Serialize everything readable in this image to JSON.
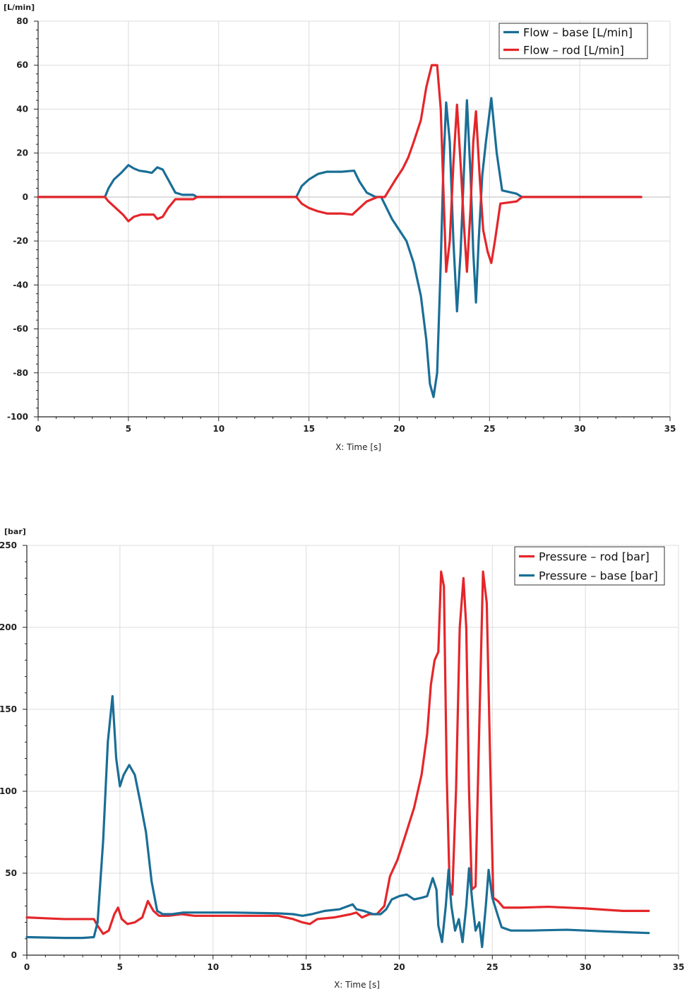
{
  "colors": {
    "blue": "#1a6e96",
    "red": "#e4262a"
  },
  "chart_data": [
    {
      "type": "line",
      "unit_label": "[L/min]",
      "xlabel": "X: Time [s]",
      "ylabel": "[L/min]",
      "xlim": [
        0,
        35
      ],
      "ylim": [
        -100,
        80
      ],
      "xticks": [
        0,
        5,
        10,
        15,
        20,
        25,
        30,
        35
      ],
      "yticks": [
        80,
        60,
        40,
        20,
        0,
        -20,
        -40,
        -60,
        -80,
        -100
      ],
      "legend_position": "top-right",
      "series": [
        {
          "name": "Flow – base [L/min]",
          "color": "#1a6e96",
          "points": [
            [
              0,
              0
            ],
            [
              3.7,
              0
            ],
            [
              3.9,
              4
            ],
            [
              4.2,
              8
            ],
            [
              4.6,
              11
            ],
            [
              5,
              14.5
            ],
            [
              5.3,
              13
            ],
            [
              5.6,
              12
            ],
            [
              6,
              11.5
            ],
            [
              6.3,
              11
            ],
            [
              6.6,
              13.5
            ],
            [
              6.9,
              12.5
            ],
            [
              7.2,
              8
            ],
            [
              7.6,
              2
            ],
            [
              8,
              1
            ],
            [
              8.6,
              1
            ],
            [
              8.8,
              0
            ],
            [
              14.3,
              0
            ],
            [
              14.6,
              5
            ],
            [
              15,
              8
            ],
            [
              15.5,
              10.5
            ],
            [
              16,
              11.5
            ],
            [
              16.8,
              11.5
            ],
            [
              17.5,
              12
            ],
            [
              17.8,
              7
            ],
            [
              18.2,
              2
            ],
            [
              18.7,
              0
            ],
            [
              19,
              0
            ],
            [
              19.3,
              -5
            ],
            [
              19.6,
              -10
            ],
            [
              20,
              -15
            ],
            [
              20.4,
              -20
            ],
            [
              20.8,
              -30
            ],
            [
              21.2,
              -45
            ],
            [
              21.5,
              -65
            ],
            [
              21.7,
              -85
            ],
            [
              21.9,
              -91
            ],
            [
              22.1,
              -80
            ],
            [
              22.3,
              -30
            ],
            [
              22.45,
              15
            ],
            [
              22.6,
              43
            ],
            [
              22.8,
              25
            ],
            [
              23,
              -20
            ],
            [
              23.2,
              -52
            ],
            [
              23.4,
              -25
            ],
            [
              23.6,
              15
            ],
            [
              23.75,
              44
            ],
            [
              23.95,
              10
            ],
            [
              24.1,
              -25
            ],
            [
              24.25,
              -48
            ],
            [
              24.4,
              -20
            ],
            [
              24.6,
              10
            ],
            [
              24.8,
              25
            ],
            [
              25.1,
              45
            ],
            [
              25.4,
              20
            ],
            [
              25.7,
              3
            ],
            [
              26.5,
              1.5
            ],
            [
              26.8,
              0
            ],
            [
              33.4,
              0
            ]
          ]
        },
        {
          "name": "Flow – rod [L/min]",
          "color": "#e4262a",
          "points": [
            [
              0,
              0
            ],
            [
              3.7,
              0
            ],
            [
              3.9,
              -2
            ],
            [
              4.3,
              -5
            ],
            [
              4.7,
              -8
            ],
            [
              5,
              -11
            ],
            [
              5.3,
              -9
            ],
            [
              5.7,
              -8
            ],
            [
              6.1,
              -8
            ],
            [
              6.4,
              -8
            ],
            [
              6.6,
              -10
            ],
            [
              6.9,
              -9
            ],
            [
              7.2,
              -5
            ],
            [
              7.6,
              -1
            ],
            [
              8,
              -1
            ],
            [
              8.6,
              -1
            ],
            [
              8.8,
              0
            ],
            [
              14.3,
              0
            ],
            [
              14.6,
              -3
            ],
            [
              15,
              -5
            ],
            [
              15.5,
              -6.5
            ],
            [
              16,
              -7.5
            ],
            [
              16.8,
              -7.5
            ],
            [
              17.4,
              -8
            ],
            [
              17.8,
              -5
            ],
            [
              18.2,
              -2
            ],
            [
              18.8,
              0
            ],
            [
              19.2,
              0
            ],
            [
              19.5,
              4
            ],
            [
              19.8,
              8
            ],
            [
              20.2,
              13
            ],
            [
              20.5,
              18
            ],
            [
              20.8,
              25
            ],
            [
              21.2,
              35
            ],
            [
              21.5,
              50
            ],
            [
              21.8,
              60
            ],
            [
              22.1,
              60
            ],
            [
              22.3,
              40
            ],
            [
              22.5,
              -10
            ],
            [
              22.6,
              -34
            ],
            [
              22.8,
              -20
            ],
            [
              23,
              15
            ],
            [
              23.2,
              42
            ],
            [
              23.4,
              15
            ],
            [
              23.6,
              -15
            ],
            [
              23.75,
              -34
            ],
            [
              23.95,
              -5
            ],
            [
              24.1,
              25
            ],
            [
              24.25,
              39
            ],
            [
              24.45,
              10
            ],
            [
              24.65,
              -15
            ],
            [
              24.9,
              -25
            ],
            [
              25.1,
              -30
            ],
            [
              25.3,
              -20
            ],
            [
              25.6,
              -3
            ],
            [
              26.5,
              -2
            ],
            [
              26.8,
              0
            ],
            [
              33.4,
              0
            ]
          ]
        }
      ]
    },
    {
      "type": "line",
      "unit_label": "[bar]",
      "xlabel": "X: Time [s]",
      "ylabel": "[bar]",
      "xlim": [
        0,
        35
      ],
      "ylim": [
        0,
        250
      ],
      "xticks": [
        0,
        5,
        10,
        15,
        20,
        25,
        30,
        35
      ],
      "yticks": [
        250,
        200,
        150,
        100,
        50,
        0
      ],
      "legend_position": "top-right",
      "series": [
        {
          "name": "Pressure – rod [bar]",
          "color": "#e4262a",
          "points": [
            [
              0,
              23
            ],
            [
              1,
              22.5
            ],
            [
              2,
              22
            ],
            [
              3,
              22
            ],
            [
              3.6,
              22
            ],
            [
              3.8,
              18
            ],
            [
              4.1,
              13
            ],
            [
              4.4,
              15
            ],
            [
              4.7,
              25
            ],
            [
              4.9,
              29
            ],
            [
              5.1,
              22
            ],
            [
              5.4,
              19
            ],
            [
              5.8,
              20
            ],
            [
              6.2,
              23
            ],
            [
              6.5,
              33
            ],
            [
              6.8,
              27
            ],
            [
              7.1,
              24
            ],
            [
              7.6,
              24
            ],
            [
              8.3,
              25
            ],
            [
              9,
              24
            ],
            [
              11,
              24
            ],
            [
              13.5,
              24
            ],
            [
              14.3,
              22
            ],
            [
              14.8,
              20
            ],
            [
              15.2,
              19
            ],
            [
              15.6,
              22
            ],
            [
              16.5,
              23
            ],
            [
              17.4,
              25
            ],
            [
              17.7,
              26
            ],
            [
              18,
              23
            ],
            [
              18.4,
              25
            ],
            [
              18.8,
              25
            ],
            [
              19.2,
              30
            ],
            [
              19.5,
              48
            ],
            [
              19.9,
              58
            ],
            [
              20.3,
              72
            ],
            [
              20.8,
              90
            ],
            [
              21.2,
              110
            ],
            [
              21.5,
              135
            ],
            [
              21.7,
              165
            ],
            [
              21.9,
              180
            ],
            [
              22.1,
              185
            ],
            [
              22.25,
              234
            ],
            [
              22.4,
              225
            ],
            [
              22.55,
              110
            ],
            [
              22.7,
              45
            ],
            [
              22.85,
              37
            ],
            [
              23.05,
              100
            ],
            [
              23.25,
              200
            ],
            [
              23.45,
              230
            ],
            [
              23.6,
              200
            ],
            [
              23.75,
              100
            ],
            [
              23.9,
              40
            ],
            [
              24.1,
              42
            ],
            [
              24.3,
              140
            ],
            [
              24.5,
              234
            ],
            [
              24.7,
              215
            ],
            [
              24.9,
              110
            ],
            [
              25.05,
              35
            ],
            [
              25.3,
              33
            ],
            [
              25.6,
              29
            ],
            [
              26.5,
              29
            ],
            [
              28,
              29.5
            ],
            [
              30,
              28.5
            ],
            [
              32,
              27
            ],
            [
              33.4,
              27
            ]
          ]
        },
        {
          "name": "Pressure – base [bar]",
          "color": "#1a6e96",
          "points": [
            [
              0,
              11
            ],
            [
              2,
              10.5
            ],
            [
              3,
              10.5
            ],
            [
              3.6,
              11
            ],
            [
              3.8,
              20
            ],
            [
              4.1,
              70
            ],
            [
              4.35,
              130
            ],
            [
              4.6,
              158
            ],
            [
              4.8,
              120
            ],
            [
              5,
              103
            ],
            [
              5.2,
              110
            ],
            [
              5.5,
              116
            ],
            [
              5.8,
              110
            ],
            [
              6.1,
              93
            ],
            [
              6.4,
              75
            ],
            [
              6.7,
              45
            ],
            [
              7,
              27
            ],
            [
              7.3,
              25
            ],
            [
              7.8,
              25
            ],
            [
              8.4,
              26
            ],
            [
              9,
              26
            ],
            [
              11,
              26
            ],
            [
              13.5,
              25.5
            ],
            [
              14.3,
              25
            ],
            [
              14.8,
              24
            ],
            [
              15.3,
              25
            ],
            [
              16,
              27
            ],
            [
              16.8,
              28
            ],
            [
              17.5,
              31
            ],
            [
              17.7,
              28
            ],
            [
              18.1,
              27
            ],
            [
              18.6,
              25
            ],
            [
              19,
              25
            ],
            [
              19.3,
              28
            ],
            [
              19.6,
              34
            ],
            [
              20,
              36
            ],
            [
              20.4,
              37
            ],
            [
              20.8,
              34
            ],
            [
              21.2,
              35
            ],
            [
              21.5,
              36
            ],
            [
              21.8,
              47
            ],
            [
              22,
              40
            ],
            [
              22.1,
              18
            ],
            [
              22.3,
              8
            ],
            [
              22.5,
              30
            ],
            [
              22.65,
              52
            ],
            [
              22.8,
              30
            ],
            [
              23,
              15
            ],
            [
              23.2,
              22
            ],
            [
              23.4,
              8
            ],
            [
              23.6,
              30
            ],
            [
              23.75,
              53
            ],
            [
              23.95,
              30
            ],
            [
              24.1,
              15
            ],
            [
              24.3,
              20
            ],
            [
              24.45,
              5
            ],
            [
              24.65,
              30
            ],
            [
              24.8,
              52
            ],
            [
              25,
              35
            ],
            [
              25.3,
              24
            ],
            [
              25.5,
              17
            ],
            [
              26,
              15
            ],
            [
              27,
              15
            ],
            [
              29,
              15.5
            ],
            [
              30,
              15
            ],
            [
              31,
              14.5
            ],
            [
              33.4,
              13.5
            ]
          ]
        }
      ]
    }
  ]
}
